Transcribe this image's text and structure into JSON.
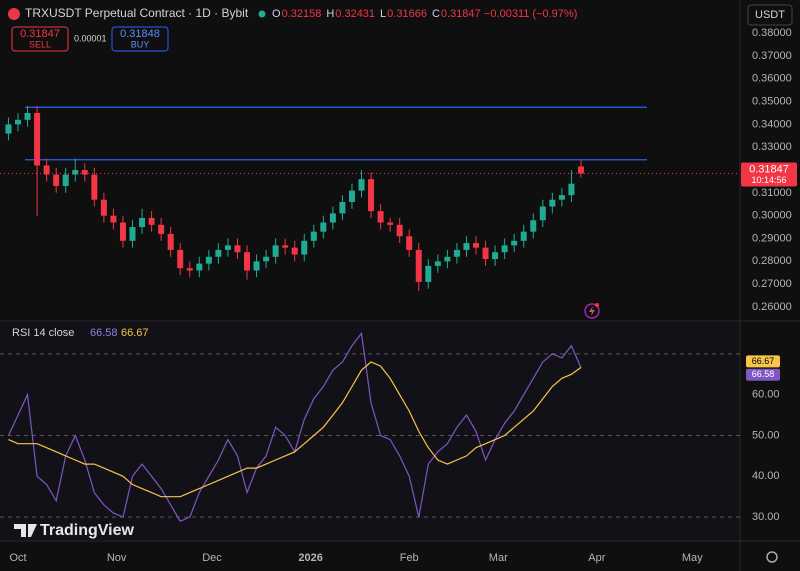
{
  "header": {
    "symbol": "TRXUSDT Perpetual Contract · 1D · Bybit",
    "ohlc_keys": [
      "O",
      "H",
      "L",
      "C"
    ],
    "change": "−0.00311 (−0.97%)",
    "currency": "USDT"
  },
  "trade": {
    "sell_price": "0.31847",
    "sell": "SELL",
    "spread": "0.00001",
    "buy_price": "0.31848",
    "buy": "BUY"
  },
  "logo": "TradingView",
  "chart_data": [
    {
      "type": "candlestick",
      "up_color": "#22ab94",
      "down_color": "#f23645",
      "x": [
        -3,
        0,
        3,
        6,
        9,
        12,
        15,
        18,
        21,
        24,
        27,
        30,
        33,
        36,
        39,
        42,
        45,
        48,
        51,
        54,
        57,
        60,
        63,
        66,
        69,
        72,
        75,
        78,
        81,
        84,
        87,
        90,
        93,
        96,
        99,
        102,
        105,
        108,
        111,
        114,
        117,
        120,
        123,
        126,
        129,
        132,
        135,
        138,
        141,
        144,
        147,
        150,
        153,
        156,
        159,
        162,
        165,
        168,
        171,
        174,
        177
      ],
      "open": [
        0.336,
        0.34,
        0.342,
        0.345,
        0.322,
        0.318,
        0.313,
        0.318,
        0.32,
        0.318,
        0.307,
        0.3,
        0.297,
        0.289,
        0.295,
        0.299,
        0.296,
        0.292,
        0.285,
        0.277,
        0.276,
        0.279,
        0.282,
        0.285,
        0.287,
        0.284,
        0.276,
        0.28,
        0.282,
        0.287,
        0.286,
        0.283,
        0.289,
        0.293,
        0.297,
        0.301,
        0.306,
        0.311,
        0.316,
        0.302,
        0.297,
        0.296,
        0.291,
        0.285,
        0.271,
        0.278,
        0.28,
        0.282,
        0.285,
        0.288,
        0.286,
        0.281,
        0.284,
        0.287,
        0.289,
        0.293,
        0.298,
        0.304,
        0.307,
        0.309,
        0.32158
      ],
      "high": [
        0.343,
        0.345,
        0.348,
        0.348,
        0.325,
        0.321,
        0.321,
        0.325,
        0.323,
        0.321,
        0.31,
        0.303,
        0.3,
        0.298,
        0.303,
        0.302,
        0.299,
        0.295,
        0.288,
        0.28,
        0.282,
        0.285,
        0.288,
        0.29,
        0.29,
        0.287,
        0.283,
        0.285,
        0.29,
        0.29,
        0.289,
        0.292,
        0.296,
        0.3,
        0.304,
        0.309,
        0.314,
        0.32,
        0.319,
        0.305,
        0.299,
        0.299,
        0.294,
        0.288,
        0.281,
        0.283,
        0.285,
        0.288,
        0.291,
        0.291,
        0.289,
        0.287,
        0.29,
        0.292,
        0.296,
        0.301,
        0.307,
        0.31,
        0.312,
        0.32,
        0.32431
      ],
      "low": [
        0.333,
        0.337,
        0.339,
        0.3,
        0.315,
        0.31,
        0.31,
        0.315,
        0.315,
        0.304,
        0.297,
        0.294,
        0.286,
        0.286,
        0.292,
        0.293,
        0.289,
        0.282,
        0.274,
        0.273,
        0.273,
        0.276,
        0.279,
        0.282,
        0.281,
        0.272,
        0.273,
        0.277,
        0.279,
        0.283,
        0.28,
        0.28,
        0.286,
        0.29,
        0.294,
        0.298,
        0.303,
        0.308,
        0.299,
        0.294,
        0.293,
        0.288,
        0.282,
        0.267,
        0.268,
        0.275,
        0.277,
        0.279,
        0.282,
        0.283,
        0.278,
        0.278,
        0.281,
        0.284,
        0.286,
        0.29,
        0.295,
        0.301,
        0.304,
        0.306,
        0.31666
      ],
      "close": [
        0.34,
        0.342,
        0.345,
        0.322,
        0.318,
        0.313,
        0.318,
        0.32,
        0.318,
        0.307,
        0.3,
        0.297,
        0.289,
        0.295,
        0.299,
        0.296,
        0.292,
        0.285,
        0.277,
        0.276,
        0.279,
        0.282,
        0.285,
        0.287,
        0.284,
        0.276,
        0.28,
        0.282,
        0.287,
        0.286,
        0.283,
        0.289,
        0.293,
        0.297,
        0.301,
        0.306,
        0.311,
        0.316,
        0.302,
        0.297,
        0.296,
        0.291,
        0.285,
        0.271,
        0.278,
        0.28,
        0.282,
        0.285,
        0.288,
        0.286,
        0.281,
        0.284,
        0.287,
        0.289,
        0.293,
        0.298,
        0.304,
        0.307,
        0.309,
        0.314,
        0.31847
      ],
      "xlim": [
        -5.66,
        227
      ],
      "xticks": [
        {
          "value": 0,
          "label": "Oct"
        },
        {
          "value": 31,
          "label": "Nov"
        },
        {
          "value": 61,
          "label": "Dec"
        },
        {
          "value": 92,
          "label": "2026"
        },
        {
          "value": 123,
          "label": "Feb"
        },
        {
          "value": 151,
          "label": "Mar"
        },
        {
          "value": 182,
          "label": "Apr"
        },
        {
          "value": 212,
          "label": "May"
        }
      ],
      "ylim": [
        0.2543,
        0.3945
      ],
      "yticks": [
        {
          "value": 0.26,
          "label": "0.26000"
        },
        {
          "value": 0.27,
          "label": "0.27000"
        },
        {
          "value": 0.28,
          "label": "0.28000"
        },
        {
          "value": 0.29,
          "label": "0.29000"
        },
        {
          "value": 0.3,
          "label": "0.30000"
        },
        {
          "value": 0.31,
          "label": "0.31000"
        },
        {
          "value": 0.32,
          "label": "0.32000"
        },
        {
          "value": 0.33,
          "label": "0.33000"
        },
        {
          "value": 0.34,
          "label": "0.34000"
        },
        {
          "value": 0.35,
          "label": "0.35000"
        },
        {
          "value": 0.36,
          "label": "0.36000"
        },
        {
          "value": 0.37,
          "label": "0.37000"
        },
        {
          "value": 0.38,
          "label": "0.38000"
        }
      ],
      "hlines": [
        {
          "value": 0.3475,
          "color": "#2962ff"
        },
        {
          "value": 0.3245,
          "color": "#2962ff"
        }
      ],
      "countdown": "10:14:56"
    },
    {
      "type": "line",
      "title": "RSI 14 close",
      "series": [
        {
          "color": "#7e57c2",
          "values": [
            50,
            55,
            60,
            40,
            38,
            34,
            45,
            50,
            44,
            36,
            33,
            31,
            30,
            40,
            43,
            40,
            37,
            33,
            29,
            30,
            36,
            40,
            44,
            49,
            45,
            36,
            42,
            45,
            52,
            50,
            46,
            54,
            59,
            62,
            66,
            68,
            72,
            75,
            58,
            50,
            49,
            45,
            40,
            30,
            43,
            46,
            48,
            52,
            55,
            51,
            44,
            49,
            53,
            56,
            60,
            64,
            68,
            70,
            69,
            72,
            66.58
          ]
        },
        {
          "color": "#f7c548",
          "values": [
            49,
            48,
            48,
            48,
            47,
            46,
            45,
            44,
            43,
            43,
            42,
            41,
            40,
            38,
            37,
            36,
            35,
            35,
            35,
            36,
            37,
            38,
            39,
            40,
            41,
            42,
            42,
            43,
            44,
            45,
            46,
            48,
            50,
            52,
            55,
            58,
            62,
            66,
            68,
            67,
            64,
            60,
            56,
            51,
            47,
            44,
            43,
            44,
            45,
            47,
            48,
            49,
            50,
            52,
            54,
            56,
            59,
            62,
            64,
            65,
            66.67
          ]
        }
      ],
      "ylim": [
        24.4,
        77.8
      ],
      "yticks": [
        {
          "value": 30,
          "label": "30.00"
        },
        {
          "value": 40,
          "label": "40.00"
        },
        {
          "value": 50,
          "label": "50.00"
        },
        {
          "value": 60,
          "label": "60.00"
        }
      ],
      "levels": [
        70,
        50,
        30
      ]
    }
  ]
}
